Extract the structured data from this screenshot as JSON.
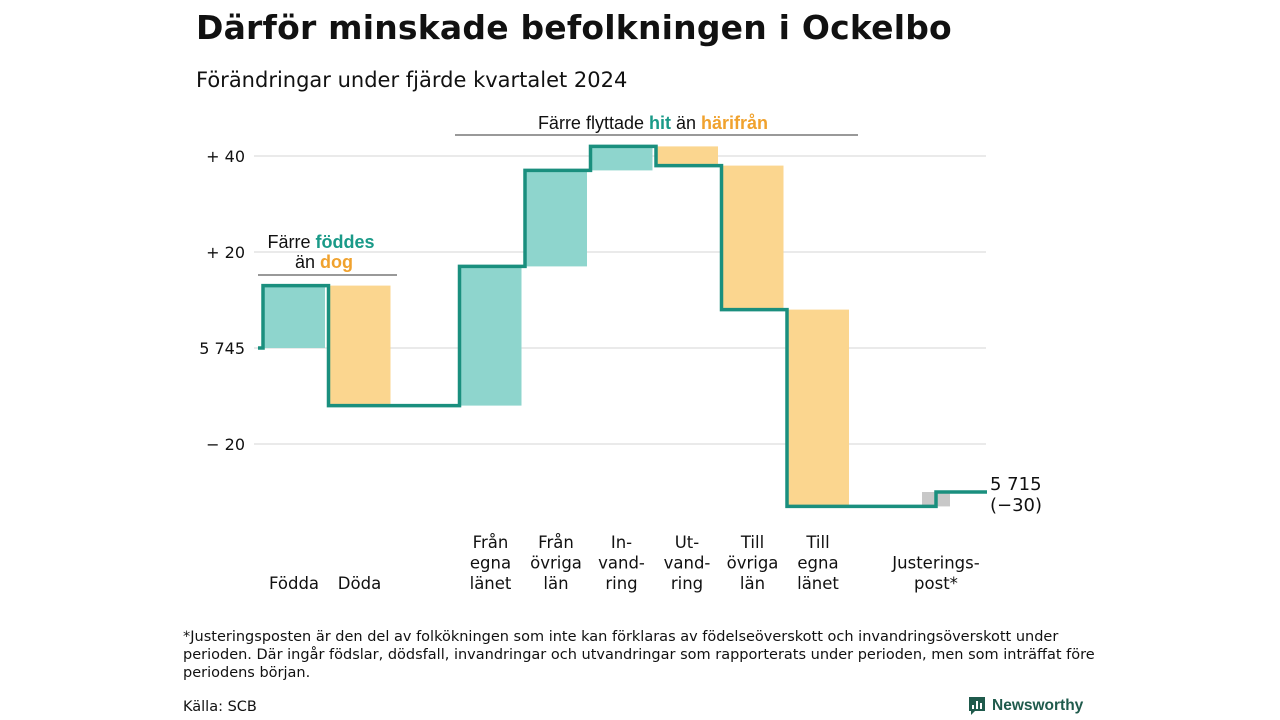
{
  "title": "Därför minskade befolkningen i Ockelbo",
  "subtitle": "Förändringar under fjärde kvartalet 2024",
  "footnote": "*Justeringsposten är den del av folkökningen som inte kan förklaras av födelseöverskott och invandringsöverskott under perioden. Där ingår födslar, dödsfall, invandringar och utvandringar som rapporterats under perioden, men som inträffat före periodens början.",
  "source": "Källa: SCB",
  "brand": "Newsworthy",
  "colors": {
    "increase": "#8ed5cd",
    "decrease": "#fbd68f",
    "adjustment": "#c8c8c8",
    "line": "#1a8f7e",
    "accent_teal": "#1a9a88",
    "accent_orange": "#f0a22e",
    "grid": "#dddddd"
  },
  "annotations": {
    "births": {
      "line1_prefix": "Färre ",
      "line1_highlight": "föddes",
      "line2_prefix": "än ",
      "line2_highlight": "dog"
    },
    "migration": {
      "prefix": "Färre flyttade ",
      "highlight1": "hit",
      "middle": " än ",
      "highlight2": "härifrån"
    }
  },
  "end_label": {
    "value": "5 715",
    "change": "(−30)"
  },
  "chart_data": {
    "type": "waterfall",
    "baseline": 5745,
    "end_value": 5715,
    "y_ticks": [
      {
        "value": 40,
        "label": "+ 40"
      },
      {
        "value": 20,
        "label": "+ 20"
      },
      {
        "value": 0,
        "label": "5 745"
      },
      {
        "value": -20,
        "label": "− 20"
      }
    ],
    "ylim": [
      -33,
      42
    ],
    "steps": [
      {
        "label_lines": [
          "Födda"
        ],
        "delta": 13,
        "kind": "increase"
      },
      {
        "label_lines": [
          "Döda"
        ],
        "delta": -25,
        "kind": "decrease"
      },
      {
        "label_lines": [
          "Från",
          "egna",
          "länet"
        ],
        "delta": 29,
        "kind": "increase"
      },
      {
        "label_lines": [
          "Från",
          "övriga",
          "län"
        ],
        "delta": 20,
        "kind": "increase"
      },
      {
        "label_lines": [
          "In-",
          "vand-",
          "ring"
        ],
        "delta": 5,
        "kind": "increase"
      },
      {
        "label_lines": [
          "Ut-",
          "vand-",
          "ring"
        ],
        "delta": -4,
        "kind": "decrease"
      },
      {
        "label_lines": [
          "Till",
          "övriga",
          "län"
        ],
        "delta": -30,
        "kind": "decrease"
      },
      {
        "label_lines": [
          "Till",
          "egna",
          "länet"
        ],
        "delta": -41,
        "kind": "decrease"
      },
      {
        "label_lines": [
          "Justerings-",
          "post*"
        ],
        "delta": 3,
        "kind": "adjustment"
      }
    ]
  }
}
